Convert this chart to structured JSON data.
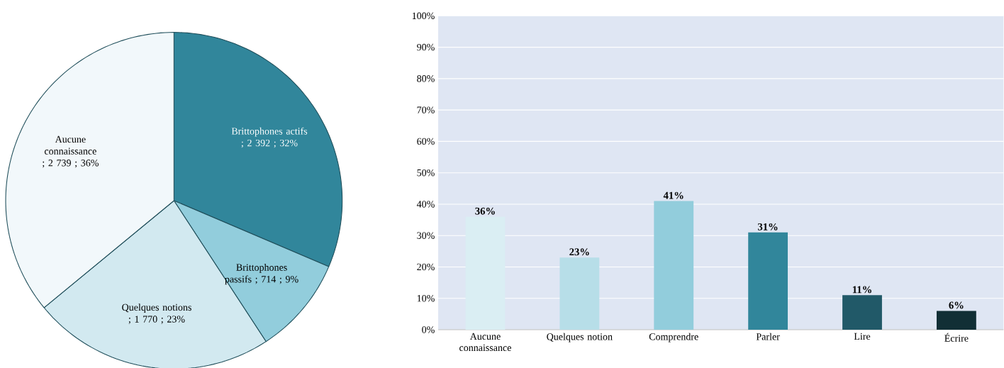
{
  "chart_data": [
    {
      "type": "pie",
      "categories": [
        "Brittophones actifs",
        "Brittophones passifs",
        "Quelques notions",
        "Aucune connaissance"
      ],
      "values": [
        2392,
        714,
        1770,
        2739
      ],
      "value_labels": [
        ";  2 392 ; 32%",
        ";  714  ; 9%",
        ";  1 770 ; 23%",
        "; 2 739 ; 36%"
      ],
      "colors": [
        "#31869b",
        "#92cddc",
        "#d2e9f0",
        "#f2f8fb"
      ]
    },
    {
      "type": "bar",
      "categories": [
        "Aucune connaissance",
        "Quelques notion",
        "Comprendre",
        "Parler",
        "Lire",
        "Écrire"
      ],
      "values": [
        36,
        23,
        41,
        31,
        11,
        6
      ],
      "colors": [
        "#daeef3",
        "#b7dee8",
        "#92cddc",
        "#31869b",
        "#215968",
        "#112f35"
      ],
      "value_labels": [
        "36%",
        "23%",
        "41%",
        "31%",
        "11%",
        "6%"
      ],
      "ylim": [
        0,
        100
      ],
      "yticks": [
        {
          "value": 0,
          "label": "0%"
        },
        {
          "value": 10,
          "label": "10%"
        },
        {
          "value": 20,
          "label": "20%"
        },
        {
          "value": 30,
          "label": "30%"
        },
        {
          "value": 40,
          "label": "40%"
        },
        {
          "value": 50,
          "label": "50%"
        },
        {
          "value": 60,
          "label": "60%"
        },
        {
          "value": 70,
          "label": "70%"
        },
        {
          "value": 80,
          "label": "80%"
        },
        {
          "value": 90,
          "label": "90%"
        },
        {
          "value": 100,
          "label": "100%"
        }
      ],
      "grid": "y"
    }
  ]
}
